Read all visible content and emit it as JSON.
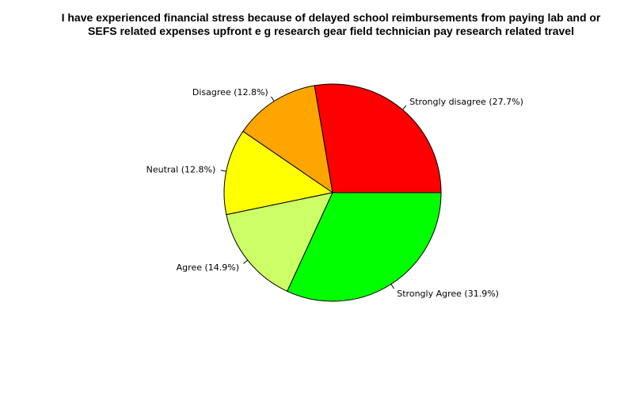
{
  "chart_data": {
    "type": "pie",
    "title_lines": [
      "I have experienced financial stress because of delayed school reimbursements from paying lab and or",
      "SEFS related expenses upfront  e g  research gear  field technician pay  research related travel"
    ],
    "slices": [
      {
        "label": "Strongly disagree (27.7%)",
        "value": 27.7,
        "color": "#ff0000"
      },
      {
        "label": "Disagree (12.8%)",
        "value": 12.8,
        "color": "#ffa500"
      },
      {
        "label": "Neutral (12.8%)",
        "value": 12.8,
        "color": "#ffff00"
      },
      {
        "label": "Agree (14.9%)",
        "value": 14.9,
        "color": "#ccff66"
      },
      {
        "label": "Strongly Agree (31.9%)",
        "value": 31.9,
        "color": "#00ff00"
      }
    ],
    "direction": "counterclockwise",
    "start": "3 o'clock"
  }
}
